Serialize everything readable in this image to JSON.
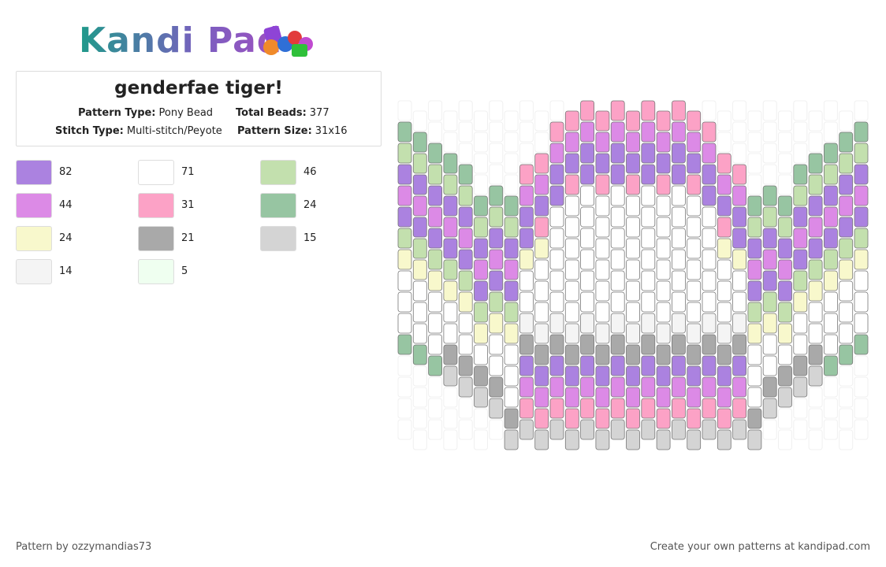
{
  "logo": "Kandi Pad",
  "header": {
    "title": "genderfae tiger!",
    "pattern_type_label": "Pattern Type:",
    "pattern_type": "Pony Bead",
    "total_beads_label": "Total Beads:",
    "total_beads": 377,
    "stitch_type_label": "Stitch Type:",
    "stitch_type": "Multi-stitch/Peyote",
    "pattern_size_label": "Pattern Size:",
    "pattern_size": "31x16"
  },
  "palette": [
    {
      "color": "#ab82e0",
      "count": 82
    },
    {
      "color": "#ffffff",
      "count": 71
    },
    {
      "color": "#c3e0ae",
      "count": 46
    },
    {
      "color": "#dc8ae6",
      "count": 44
    },
    {
      "color": "#fca2c6",
      "count": 31
    },
    {
      "color": "#97c5a2",
      "count": 24
    },
    {
      "color": "#f8f8cc",
      "count": 24
    },
    {
      "color": "#a9a9a9",
      "count": 21
    },
    {
      "color": "#d4d4d4",
      "count": 15
    },
    {
      "color": "#f4f4f4",
      "count": 14
    },
    {
      "color": "#effff0",
      "count": 5
    }
  ],
  "footer": {
    "credit": "Pattern by ozzymandias73",
    "link": "Create your own patterns at kandipad.com"
  }
}
